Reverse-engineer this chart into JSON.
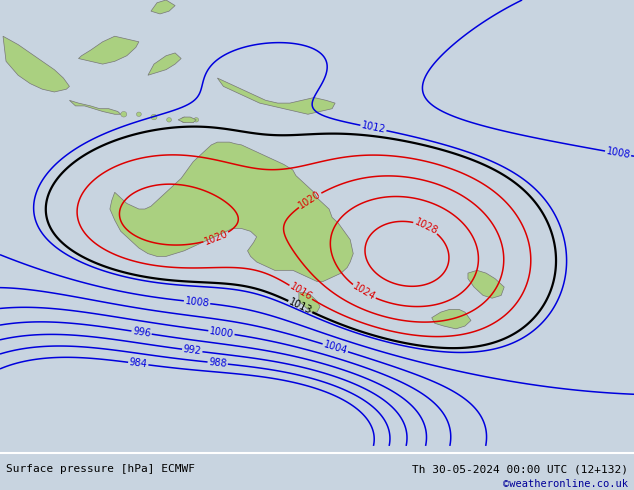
{
  "title_left": "Surface pressure [hPa] ECMWF",
  "title_right": "Th 30-05-2024 00:00 UTC (12+132)",
  "copyright": "©weatheronline.co.uk",
  "background_color": "#c8d4e0",
  "ocean_color": "#c8d4e0",
  "australia_color": "#aad080",
  "land_color": "#aad080",
  "isobar_blue_color": "#0000dd",
  "isobar_red_color": "#dd0000",
  "isobar_black_color": "#000000",
  "bottom_text_color": "#000099",
  "pressure_levels_blue": [
    984,
    988,
    992,
    996,
    1000,
    1004,
    1008,
    1012
  ],
  "pressure_levels_red": [
    1016,
    1020,
    1024,
    1028
  ],
  "pressure_levels_black": [
    1013
  ],
  "figwidth": 6.34,
  "figheight": 4.9,
  "dpi": 100
}
